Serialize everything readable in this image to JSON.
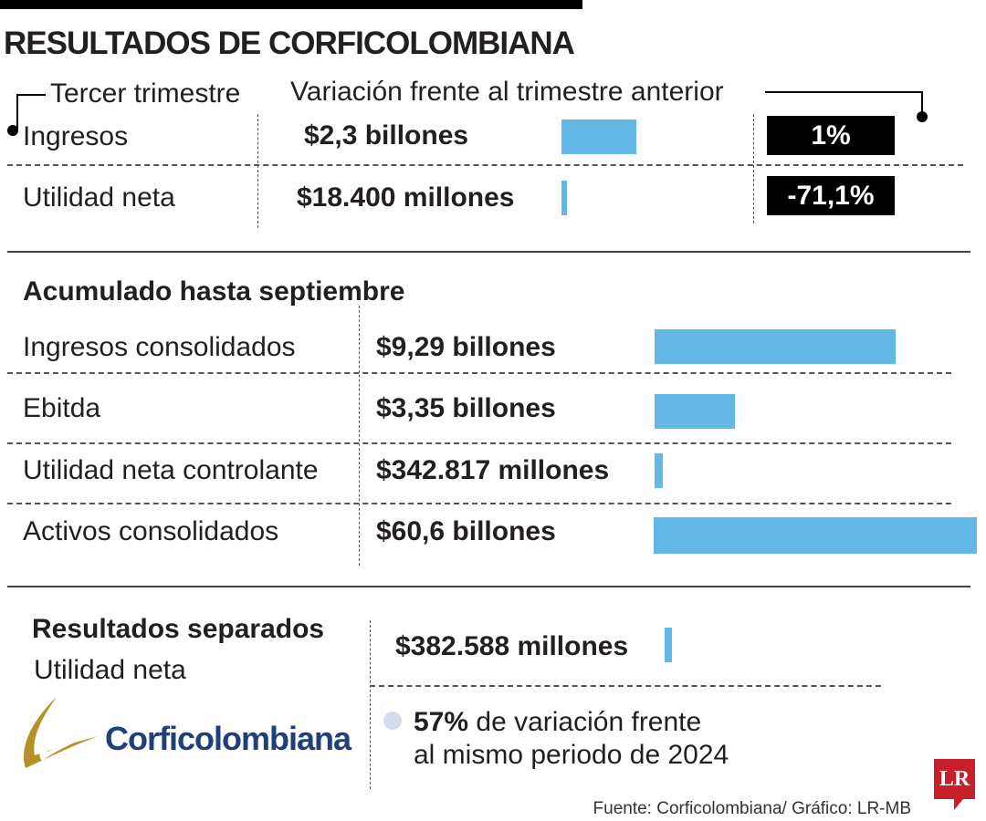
{
  "title": "RESULTADOS DE CORFICOLOMBIANA",
  "quarter": {
    "label": "Tercer trimestre",
    "variation_label": "Variación frente al trimestre anterior",
    "rows": [
      {
        "label": "Ingresos",
        "value": "$2,3 billones",
        "amount_cop_billions": 2.3,
        "variation": "1%"
      },
      {
        "label": "Utilidad neta",
        "value": "$18.400 millones",
        "amount_cop_billions": 0.0184,
        "variation": "-71,1%"
      }
    ]
  },
  "accumulated": {
    "heading": "Acumulado hasta septiembre",
    "rows": [
      {
        "label": "Ingresos consolidados",
        "value": "$9,29 billones",
        "amount_cop_billions": 9.29
      },
      {
        "label": "Ebitda",
        "value": "$3,35 billones",
        "amount_cop_billions": 3.35
      },
      {
        "label": "Utilidad neta controlante",
        "value": "$342.817 millones",
        "amount_cop_billions": 0.342817
      },
      {
        "label": "Activos consolidados",
        "value": "$60,6 billones",
        "amount_cop_billions": 60.6
      }
    ]
  },
  "separate": {
    "heading": "Resultados separados",
    "label": "Utilidad neta",
    "value": "$382.588 millones",
    "amount_cop_billions": 0.382588,
    "note_bold": "57%",
    "note_line1": " de variación frente",
    "note_line2": "al mismo periodo de 2024"
  },
  "logo_text": "Corficolombiana",
  "badge_text": "LR",
  "source": "Fuente: Corficolombiana/ Gráfico: LR-MB",
  "colors": {
    "bar": "#63b8e8",
    "variation_box": "#000000",
    "badge": "#c8202a",
    "logo_blue": "#1f3f7a",
    "logo_gold": "#b8902a",
    "note_dot": "#d4dcef"
  },
  "chart_data": {
    "type": "bar",
    "series_groups": [
      {
        "group": "Tercer trimestre",
        "categories": [
          "Ingresos",
          "Utilidad neta"
        ],
        "values_label": [
          "$2,3 billones",
          "$18.400 millones"
        ],
        "variation": [
          "1%",
          "-71,1%"
        ]
      },
      {
        "group": "Acumulado hasta septiembre",
        "categories": [
          "Ingresos consolidados",
          "Ebitda",
          "Utilidad neta controlante",
          "Activos consolidados"
        ],
        "values_label": [
          "$9,29 billones",
          "$3,35 billones",
          "$342.817 millones",
          "$60,6 billones"
        ]
      },
      {
        "group": "Resultados separados",
        "categories": [
          "Utilidad neta"
        ],
        "values_label": [
          "$382.588 millones"
        ]
      }
    ]
  }
}
